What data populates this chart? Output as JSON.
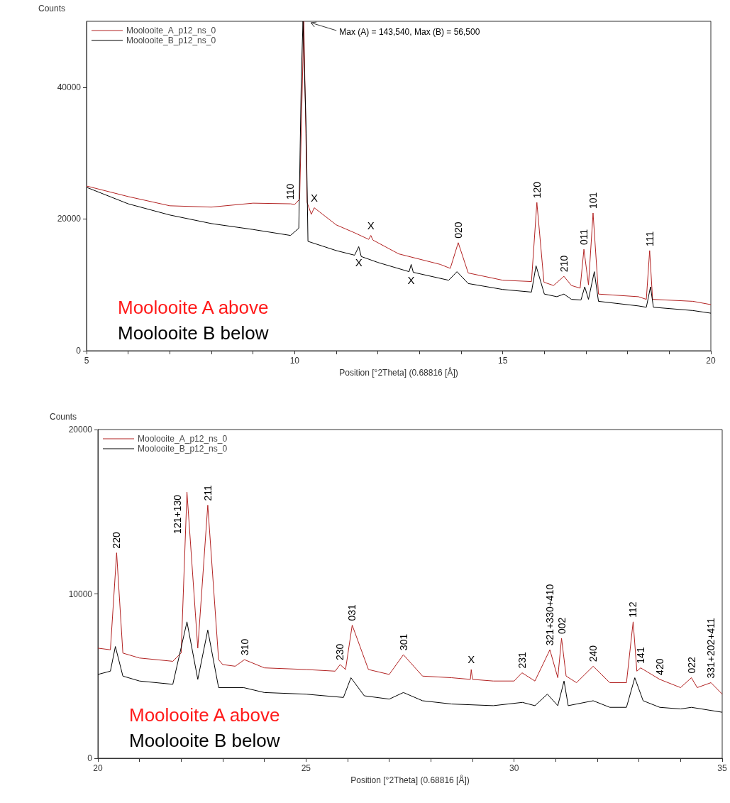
{
  "chart_data": [
    {
      "type": "line",
      "xlabel": "Position [°2Theta] (0.68816 [Å])",
      "ylabel": "Counts",
      "xlim": [
        5,
        20
      ],
      "xticks": [
        5,
        {
          "value": 6,
          "label": null
        },
        {
          "value": 7,
          "label": null
        },
        {
          "value": 8,
          "label": null
        },
        {
          "value": 9,
          "label": null
        },
        10,
        {
          "value": 11,
          "label": null
        },
        {
          "value": 12,
          "label": null
        },
        {
          "value": 13,
          "label": null
        },
        {
          "value": 14,
          "label": null
        },
        15,
        {
          "value": 16,
          "label": null
        },
        {
          "value": 17,
          "label": null
        },
        {
          "value": 18,
          "label": null
        },
        {
          "value": 19,
          "label": null
        },
        20
      ],
      "ylim": [
        0,
        50000
      ],
      "yticks": [
        0,
        20000,
        40000
      ],
      "grid": false,
      "legend": "top left",
      "series": [
        {
          "name": "Moolooite_A_p12_ns_0",
          "color": "#b22222",
          "x": [
            5,
            6,
            7,
            8,
            9,
            9.9,
            10,
            10.12,
            10.22,
            10.3,
            10.4,
            10.47,
            11,
            11.44,
            11.78,
            11.83,
            11.88,
            12.5,
            13.5,
            13.74,
            13.93,
            14.17,
            15,
            15.69,
            15.82,
            15.99,
            16.22,
            16.47,
            16.65,
            16.86,
            16.95,
            17.06,
            17.17,
            17.3,
            18.26,
            18.45,
            18.53,
            18.6,
            19.57,
            20
          ],
          "values": [
            25000,
            23400,
            22000,
            21800,
            22400,
            22300,
            22200,
            23000,
            50000,
            22500,
            20700,
            21700,
            19100,
            17900,
            16900,
            17500,
            16800,
            14700,
            13100,
            12500,
            16400,
            11800,
            10700,
            10500,
            22500,
            10400,
            9900,
            11300,
            9900,
            9500,
            15400,
            10000,
            20900,
            8600,
            8200,
            7800,
            15200,
            7800,
            7500,
            7000
          ]
        },
        {
          "name": "Moolooite_B_p12_ns_0",
          "color": "#000000",
          "x": [
            5,
            6,
            7,
            8,
            9,
            9.9,
            10.1,
            10.16,
            10.2,
            10.28,
            10.32,
            11,
            11.44,
            11.54,
            11.6,
            12,
            12.75,
            12.8,
            12.85,
            13.7,
            13.9,
            14.17,
            15,
            15.69,
            15.8,
            16,
            16.3,
            16.47,
            16.65,
            16.88,
            16.97,
            17.06,
            17.2,
            17.3,
            18.26,
            18.45,
            18.55,
            18.62,
            19.57,
            20
          ],
          "values": [
            24800,
            22300,
            20600,
            19300,
            18400,
            17500,
            18600,
            41500,
            50000,
            33000,
            16600,
            15200,
            14500,
            15800,
            14300,
            13400,
            12000,
            13100,
            11900,
            10700,
            12000,
            10200,
            9300,
            8900,
            12900,
            8600,
            8200,
            8600,
            7800,
            7700,
            9700,
            7800,
            12000,
            7500,
            6800,
            6600,
            9700,
            6600,
            6100,
            5700
          ]
        }
      ],
      "annotations": [
        "Moolooite A above",
        "Moolooite B below",
        "Max (A) = 143,540, Max (B) = 56,500",
        {
          "text": "110",
          "x": 9.9,
          "y": 22300
        },
        {
          "text": "X",
          "x": 10.47,
          "y": 21700
        },
        {
          "text": "X",
          "x": 11.54,
          "y": 15800
        },
        {
          "text": "X",
          "x": 11.83,
          "y": 17500
        },
        {
          "text": "X",
          "x": 12.8,
          "y": 13100
        },
        {
          "text": "020",
          "x": 13.93,
          "y": 16400
        },
        {
          "text": "120",
          "x": 15.82,
          "y": 22500
        },
        {
          "text": "210",
          "x": 16.47,
          "y": 11300
        },
        {
          "text": "011",
          "x": 16.95,
          "y": 15400
        },
        {
          "text": "101",
          "x": 17.17,
          "y": 20900
        },
        {
          "text": "111",
          "x": 18.53,
          "y": 15200
        }
      ]
    },
    {
      "type": "line",
      "xlabel": "Position [°2Theta] (0.68816 [Å])",
      "ylabel": "Counts",
      "xlim": [
        20,
        35
      ],
      "xticks": [
        20,
        {
          "value": 21,
          "label": null
        },
        {
          "value": 22,
          "label": null
        },
        {
          "value": 23,
          "label": null
        },
        {
          "value": 24,
          "label": null
        },
        25,
        {
          "value": 26,
          "label": null
        },
        {
          "value": 27,
          "label": null
        },
        {
          "value": 28,
          "label": null
        },
        {
          "value": 29,
          "label": null
        },
        30,
        {
          "value": 31,
          "label": null
        },
        {
          "value": 32,
          "label": null
        },
        {
          "value": 33,
          "label": null
        },
        {
          "value": 34,
          "label": null
        },
        35
      ],
      "ylim": [
        0,
        20000
      ],
      "yticks": [
        0,
        10000,
        20000
      ],
      "grid": false,
      "legend": "top left",
      "series": [
        {
          "name": "Moolooite_A_p12_ns_0",
          "color": "#b22222",
          "x": [
            20,
            20.3,
            20.45,
            20.6,
            21,
            21.8,
            22,
            22.14,
            22.4,
            22.64,
            22.9,
            23,
            23.3,
            23.52,
            24,
            25,
            25.7,
            25.82,
            25.95,
            26.11,
            26.5,
            27,
            27.34,
            27.8,
            28.5,
            28.95,
            28.97,
            29,
            29.5,
            30,
            30.19,
            30.5,
            30.86,
            31.05,
            31.14,
            31.25,
            31.5,
            31.9,
            32.3,
            32.7,
            32.86,
            32.95,
            33.04,
            33.5,
            34,
            34.26,
            34.4,
            34.73,
            35
          ],
          "values": [
            6700,
            6600,
            12500,
            6400,
            6100,
            5900,
            6400,
            16200,
            6700,
            15400,
            6000,
            5700,
            5600,
            6000,
            5500,
            5400,
            5300,
            5700,
            5400,
            8100,
            5400,
            5100,
            6300,
            5000,
            4900,
            4800,
            5400,
            4800,
            4700,
            4700,
            5200,
            4700,
            6600,
            4900,
            7300,
            5000,
            4600,
            5600,
            4600,
            4600,
            8300,
            5300,
            5500,
            4800,
            4300,
            4900,
            4300,
            4600,
            3900
          ]
        },
        {
          "name": "Moolooite_B_p12_ns_0",
          "color": "#000000",
          "x": [
            20,
            20.3,
            20.42,
            20.6,
            21,
            21.8,
            22.14,
            22.4,
            22.64,
            22.9,
            23.5,
            24,
            25,
            25.9,
            26.08,
            26.4,
            27,
            27.34,
            27.8,
            28.5,
            29.5,
            30.2,
            30.5,
            30.8,
            31.05,
            31.2,
            31.3,
            31.9,
            32.3,
            32.7,
            32.9,
            33.1,
            33.5,
            34,
            34.26,
            35
          ],
          "values": [
            5100,
            5300,
            6800,
            5000,
            4700,
            4500,
            8300,
            4800,
            7800,
            4300,
            4300,
            4000,
            3900,
            3700,
            4900,
            3800,
            3600,
            4000,
            3500,
            3300,
            3200,
            3400,
            3200,
            3900,
            3200,
            4700,
            3200,
            3500,
            3100,
            3100,
            4900,
            3500,
            3100,
            3000,
            3100,
            2800
          ]
        }
      ],
      "annotations": [
        "Moolooite A above",
        "Moolooite B below",
        {
          "text": "220",
          "x": 20.45,
          "y": 12500
        },
        {
          "text": "121+130",
          "x": 22.14,
          "y": 16200
        },
        {
          "text": "211",
          "x": 22.64,
          "y": 15400
        },
        {
          "text": "310",
          "x": 23.52,
          "y": 6000
        },
        {
          "text": "230",
          "x": 25.82,
          "y": 5700
        },
        {
          "text": "031",
          "x": 26.11,
          "y": 8100
        },
        {
          "text": "301",
          "x": 27.34,
          "y": 6300
        },
        {
          "text": "X",
          "x": 28.97,
          "y": 5400
        },
        {
          "text": "231",
          "x": 30.19,
          "y": 5200
        },
        {
          "text": "321+330+410",
          "x": 30.86,
          "y": 6600
        },
        {
          "text": "002",
          "x": 31.14,
          "y": 7300
        },
        {
          "text": "240",
          "x": 31.9,
          "y": 5600
        },
        {
          "text": "112",
          "x": 32.86,
          "y": 8300
        },
        {
          "text": "141",
          "x": 33.04,
          "y": 5500
        },
        {
          "text": "420",
          "x": 33.5,
          "y": 4800
        },
        {
          "text": "022",
          "x": 34.26,
          "y": 4900
        },
        {
          "text": "331+202+411",
          "x": 34.73,
          "y": 4600
        }
      ]
    }
  ]
}
